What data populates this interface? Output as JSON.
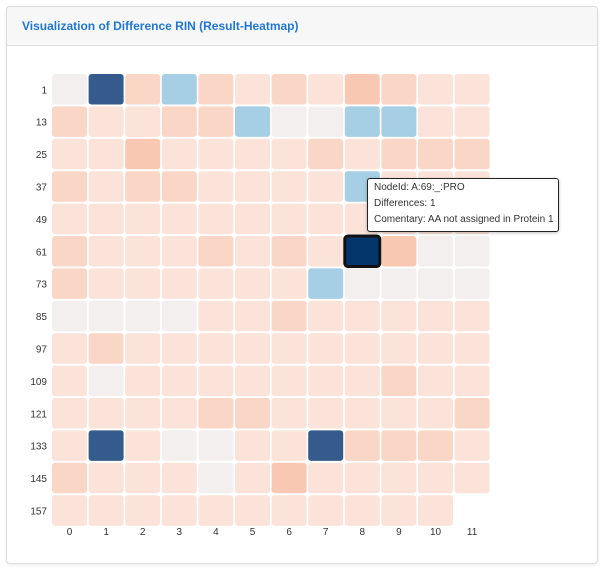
{
  "panel": {
    "title": "Visualization of Difference RIN (Result-Heatmap)"
  },
  "chart_data": {
    "type": "heatmap",
    "x_labels": [
      "0",
      "1",
      "2",
      "3",
      "4",
      "5",
      "6",
      "7",
      "8",
      "9",
      "10",
      "11"
    ],
    "y_labels": [
      "1",
      "13",
      "25",
      "37",
      "49",
      "61",
      "73",
      "85",
      "97",
      "109",
      "121",
      "133",
      "145",
      "157"
    ],
    "colors": {
      "dark": "#345b8b",
      "selected": "#04366b",
      "light_blue": "#a6cee4",
      "neutral": "#f4efef",
      "light_peach": "#fbe3d9",
      "peach": "#fad6c6",
      "deep_peach": "#f8c8b2",
      "selected_border": "#111111"
    },
    "cells": [
      [
        "neutral",
        "dark",
        "peach",
        "light_blue",
        "peach",
        "light_peach",
        "peach",
        "light_peach",
        "deep_peach",
        "peach",
        "light_peach",
        "light_peach"
      ],
      [
        "peach",
        "light_peach",
        "light_peach",
        "peach",
        "peach",
        "light_blue",
        "neutral",
        "neutral",
        "light_blue",
        "light_blue",
        "light_peach",
        "light_peach"
      ],
      [
        "light_peach",
        "light_peach",
        "deep_peach",
        "light_peach",
        "light_peach",
        "light_peach",
        "light_peach",
        "peach",
        "light_peach",
        "peach",
        "peach",
        "peach"
      ],
      [
        "peach",
        "light_peach",
        "peach",
        "peach",
        "light_peach",
        "light_peach",
        "light_peach",
        "light_peach",
        "light_blue",
        "light_peach",
        "light_peach",
        "light_peach"
      ],
      [
        "light_peach",
        "light_peach",
        "light_peach",
        "light_peach",
        "light_peach",
        "light_peach",
        "light_peach",
        "light_peach",
        "light_peach",
        "light_peach",
        "light_peach",
        "light_peach"
      ],
      [
        "peach",
        "light_peach",
        "light_peach",
        "light_peach",
        "peach",
        "light_peach",
        "peach",
        "light_peach",
        "selected",
        "deep_peach",
        "neutral",
        "neutral"
      ],
      [
        "peach",
        "light_peach",
        "light_peach",
        "light_peach",
        "light_peach",
        "light_peach",
        "light_peach",
        "light_blue",
        "neutral",
        "neutral",
        "neutral",
        "neutral"
      ],
      [
        "neutral",
        "neutral",
        "neutral",
        "neutral",
        "light_peach",
        "light_peach",
        "peach",
        "light_peach",
        "light_peach",
        "light_peach",
        "light_peach",
        "light_peach"
      ],
      [
        "light_peach",
        "peach",
        "light_peach",
        "light_peach",
        "light_peach",
        "light_peach",
        "light_peach",
        "light_peach",
        "light_peach",
        "light_peach",
        "light_peach",
        "light_peach"
      ],
      [
        "light_peach",
        "neutral",
        "light_peach",
        "light_peach",
        "light_peach",
        "light_peach",
        "light_peach",
        "light_peach",
        "light_peach",
        "peach",
        "light_peach",
        "light_peach"
      ],
      [
        "light_peach",
        "light_peach",
        "light_peach",
        "light_peach",
        "peach",
        "peach",
        "light_peach",
        "light_peach",
        "light_peach",
        "light_peach",
        "light_peach",
        "peach"
      ],
      [
        "light_peach",
        "dark",
        "light_peach",
        "neutral",
        "neutral",
        "light_peach",
        "light_peach",
        "dark",
        "peach",
        "peach",
        "peach",
        "light_peach"
      ],
      [
        "peach",
        "light_peach",
        "light_peach",
        "light_peach",
        "neutral",
        "light_peach",
        "deep_peach",
        "light_peach",
        "light_peach",
        "light_peach",
        "light_peach",
        "light_peach"
      ],
      [
        "light_peach",
        "light_peach",
        "light_peach",
        "light_peach",
        "light_peach",
        "light_peach",
        "light_peach",
        "light_peach",
        "light_peach",
        "light_peach",
        "light_peach",
        null
      ]
    ],
    "selected": {
      "row": 5,
      "col": 8
    }
  },
  "tooltip": {
    "line1": "NodeId: A:69:_:PRO",
    "line2": "Differences: 1",
    "line3": "Comentary: AA not assigned in Protein 1"
  }
}
